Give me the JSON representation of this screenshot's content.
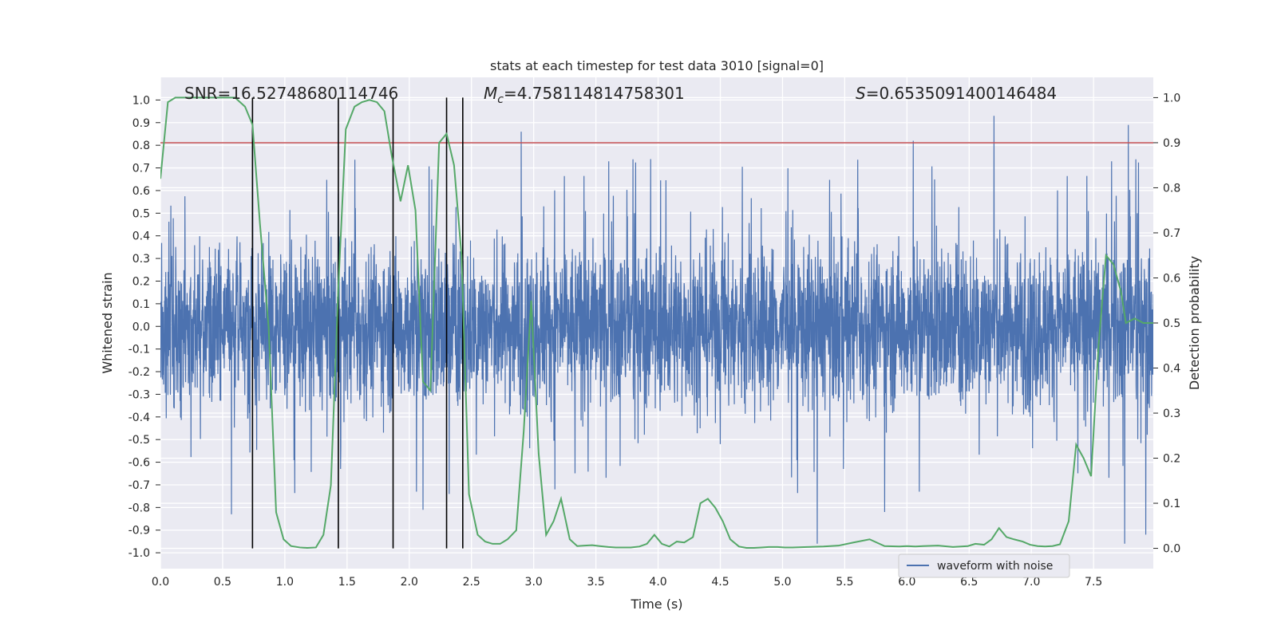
{
  "chart_data": {
    "type": "line",
    "title": "stats at each timestep for test data 3010 [signal=0]",
    "xlabel": "Time (s)",
    "ylabel": "Whitened strain",
    "y2label": "Detection probability",
    "xlim": [
      0.0,
      7.98
    ],
    "ylim": [
      -1.07,
      1.1
    ],
    "y2lim": [
      -0.045,
      1.045
    ],
    "x_ticks": [
      0.0,
      0.5,
      1.0,
      1.5,
      2.0,
      2.5,
      3.0,
      3.5,
      4.0,
      4.5,
      5.0,
      5.5,
      6.0,
      6.5,
      7.0,
      7.5
    ],
    "x_tick_labels": [
      "0.0",
      "0.5",
      "1.0",
      "1.5",
      "2.0",
      "2.5",
      "3.0",
      "3.5",
      "4.0",
      "4.5",
      "5.0",
      "5.5",
      "6.0",
      "6.5",
      "7.0",
      "7.5"
    ],
    "y_ticks": [
      1.0,
      0.9,
      0.8,
      0.7,
      0.6,
      0.5,
      0.4,
      0.3,
      0.2,
      0.1,
      0.0,
      -0.1,
      -0.2,
      -0.3,
      -0.4,
      -0.5,
      -0.6,
      -0.7,
      -0.8,
      -0.9,
      -1.0
    ],
    "y_tick_labels": [
      "1.0",
      "0.9",
      "0.8",
      "0.7",
      "0.6",
      "0.5",
      "0.4",
      "0.3",
      "0.2",
      "0.1",
      "0.0",
      "-0.1",
      "-0.2",
      "-0.3",
      "-0.4",
      "-0.5",
      "-0.6",
      "-0.7",
      "-0.8",
      "-0.9",
      "-1.0"
    ],
    "y2_ticks": [
      1.0,
      0.9,
      0.8,
      0.7,
      0.6,
      0.5,
      0.4,
      0.3,
      0.2,
      0.1,
      0.0
    ],
    "y2_tick_labels": [
      "1.0",
      "0.9",
      "0.8",
      "0.7",
      "0.6",
      "0.5",
      "0.4",
      "0.3",
      "0.2",
      "0.1",
      "0.0"
    ],
    "grid": true,
    "legend": {
      "position": "bottom-right",
      "entries": [
        "waveform with noise"
      ]
    },
    "annotations": {
      "snr": {
        "prefix": "SNR=",
        "value": "16.52748680114746"
      },
      "mc": {
        "symbol": "M",
        "subscript": "c",
        "value": "=4.758114814758301"
      },
      "s": {
        "symbol": "S",
        "value": "=0.6535091400146484"
      }
    },
    "threshold": {
      "value": 0.9,
      "axis": "y2",
      "color": "#c44e52"
    },
    "vertical_lines": [
      0.74,
      1.43,
      1.87,
      2.3,
      2.43
    ],
    "series": [
      {
        "name": "waveform with noise",
        "axis": "y",
        "color": "#4c72b0",
        "description": "whitened strain noise, dense oscillation",
        "typical_amplitude": 0.45,
        "peak_amplitude": 1.0,
        "spikes": [
          {
            "x": 0.57,
            "y": -0.83
          },
          {
            "x": 0.74,
            "y": 0.88
          },
          {
            "x": 1.45,
            "y": -0.53
          },
          {
            "x": 2.11,
            "y": 0.83
          },
          {
            "x": 2.11,
            "y": -0.81
          },
          {
            "x": 2.32,
            "y": -0.74
          },
          {
            "x": 2.9,
            "y": 0.86
          },
          {
            "x": 3.08,
            "y": 0.53
          },
          {
            "x": 3.17,
            "y": -0.72
          },
          {
            "x": 5.28,
            "y": -0.96
          },
          {
            "x": 5.82,
            "y": -0.82
          },
          {
            "x": 6.05,
            "y": 0.82
          },
          {
            "x": 6.7,
            "y": 0.93
          },
          {
            "x": 7.75,
            "y": -0.96
          },
          {
            "x": 7.78,
            "y": 0.89
          },
          {
            "x": 7.92,
            "y": 1.0
          },
          {
            "x": 7.92,
            "y": -0.92
          }
        ]
      },
      {
        "name": "detection probability",
        "axis": "y2",
        "color": "#55a868",
        "x": [
          0.0,
          0.06,
          0.12,
          0.2,
          0.3,
          0.4,
          0.5,
          0.6,
          0.68,
          0.74,
          0.8,
          0.87,
          0.93,
          0.99,
          1.05,
          1.12,
          1.18,
          1.25,
          1.31,
          1.37,
          1.43,
          1.49,
          1.56,
          1.62,
          1.68,
          1.74,
          1.8,
          1.86,
          1.93,
          1.99,
          2.05,
          2.11,
          2.17,
          2.24,
          2.3,
          2.36,
          2.42,
          2.48,
          2.55,
          2.61,
          2.67,
          2.73,
          2.79,
          2.86,
          2.92,
          2.98,
          3.04,
          3.1,
          3.16,
          3.22,
          3.29,
          3.35,
          3.41,
          3.47,
          3.53,
          3.6,
          3.66,
          3.72,
          3.78,
          3.85,
          3.91,
          3.97,
          4.03,
          4.09,
          4.15,
          4.21,
          4.28,
          4.34,
          4.4,
          4.46,
          4.52,
          4.58,
          4.65,
          4.71,
          4.77,
          4.83,
          4.89,
          4.96,
          5.02,
          5.08,
          5.2,
          5.33,
          5.45,
          5.57,
          5.7,
          5.82,
          5.94,
          6.0,
          6.07,
          6.13,
          6.25,
          6.37,
          6.49,
          6.55,
          6.62,
          6.68,
          6.74,
          6.8,
          6.86,
          6.93,
          6.99,
          7.05,
          7.11,
          7.17,
          7.23,
          7.3,
          7.36,
          7.42,
          7.48,
          7.54,
          7.6,
          7.66,
          7.72,
          7.76,
          7.83,
          7.9,
          7.98
        ],
        "values": [
          0.82,
          0.99,
          1.0,
          1.0,
          1.0,
          1.0,
          1.0,
          1.0,
          0.98,
          0.94,
          0.72,
          0.49,
          0.08,
          0.02,
          0.005,
          0.002,
          0.001,
          0.002,
          0.03,
          0.14,
          0.58,
          0.93,
          0.98,
          0.99,
          0.995,
          0.99,
          0.97,
          0.87,
          0.77,
          0.85,
          0.75,
          0.37,
          0.35,
          0.9,
          0.92,
          0.85,
          0.65,
          0.12,
          0.03,
          0.015,
          0.01,
          0.01,
          0.02,
          0.04,
          0.26,
          0.55,
          0.21,
          0.03,
          0.06,
          0.11,
          0.02,
          0.005,
          0.006,
          0.007,
          0.005,
          0.003,
          0.002,
          0.002,
          0.002,
          0.004,
          0.01,
          0.03,
          0.01,
          0.004,
          0.015,
          0.013,
          0.025,
          0.1,
          0.11,
          0.09,
          0.06,
          0.02,
          0.004,
          0.001,
          0.001,
          0.002,
          0.003,
          0.003,
          0.002,
          0.002,
          0.003,
          0.004,
          0.006,
          0.013,
          0.02,
          0.005,
          0.004,
          0.005,
          0.004,
          0.005,
          0.006,
          0.003,
          0.005,
          0.01,
          0.008,
          0.02,
          0.045,
          0.025,
          0.02,
          0.015,
          0.008,
          0.005,
          0.004,
          0.005,
          0.009,
          0.06,
          0.23,
          0.2,
          0.16,
          0.45,
          0.65,
          0.63,
          0.57,
          0.5,
          0.51,
          0.5,
          0.5
        ]
      }
    ]
  }
}
